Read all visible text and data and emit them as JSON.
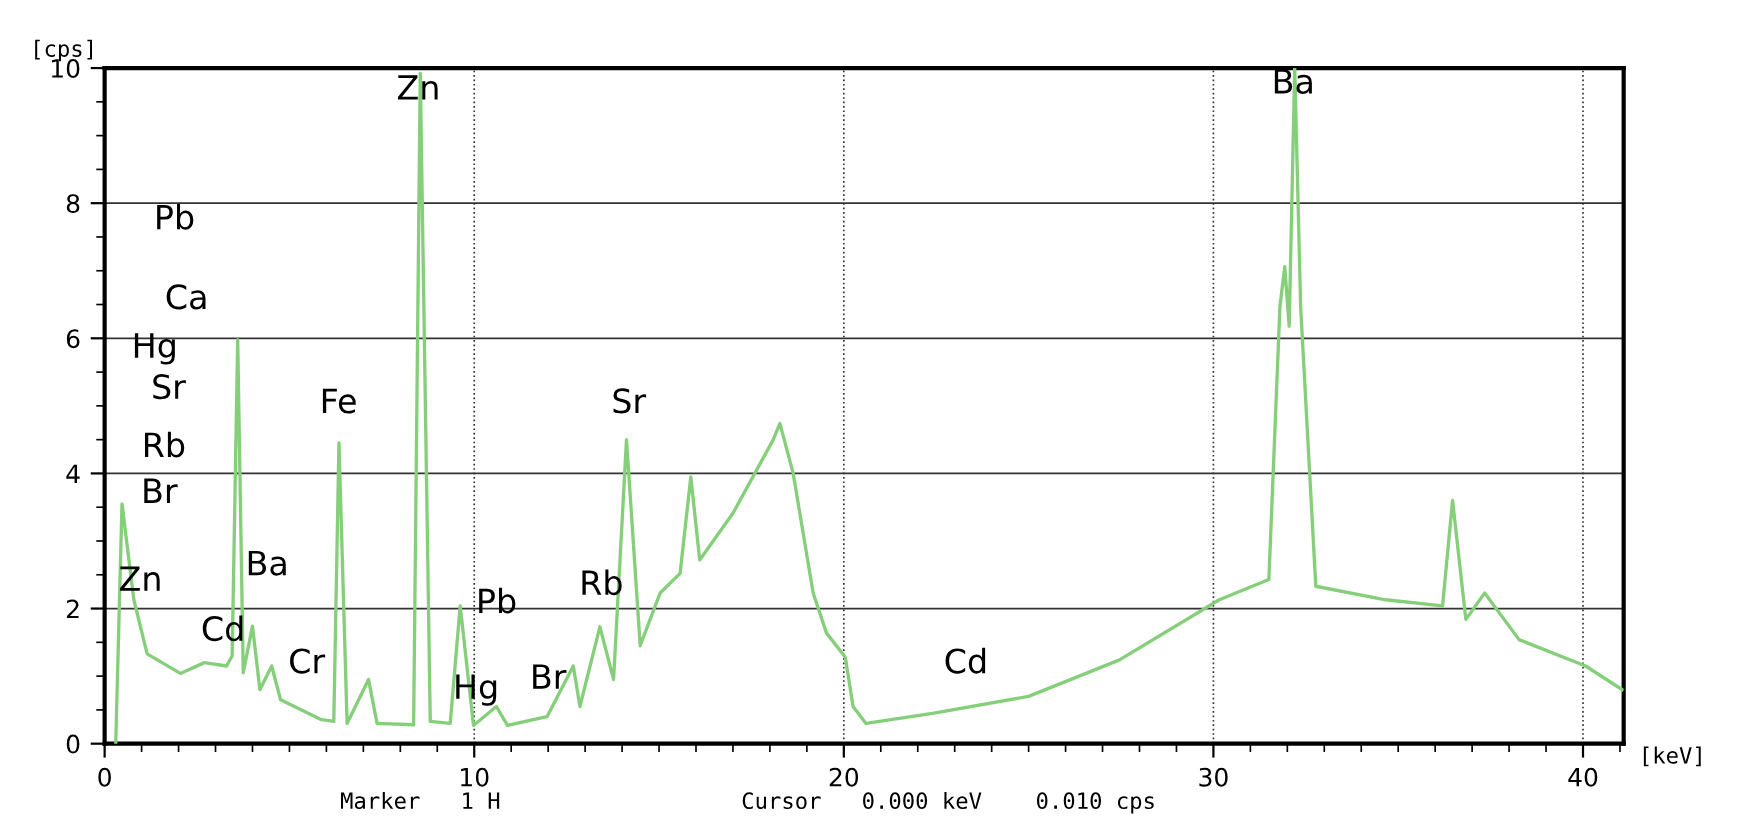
{
  "chart_data": {
    "type": "line",
    "xlabel": "[keV]",
    "ylabel": "[cps]",
    "x": [
      0.3,
      0.47,
      0.79,
      1.15,
      2.05,
      2.7,
      3.3,
      3.45,
      3.6,
      3.75,
      4.0,
      4.2,
      4.52,
      4.76,
      5.84,
      6.2,
      6.34,
      6.56,
      7.14,
      7.37,
      8.36,
      8.54,
      8.81,
      9.35,
      9.62,
      9.98,
      10.6,
      10.9,
      11.97,
      12.68,
      12.86,
      13.4,
      13.77,
      14.12,
      14.49,
      15.03,
      15.57,
      15.86,
      16.1,
      17.0,
      18.09,
      18.27,
      18.63,
      19.17,
      19.53,
      20.04,
      20.25,
      20.6,
      22.4,
      25.0,
      27.46,
      30.16,
      31.5,
      31.8,
      31.93,
      32.05,
      32.2,
      32.36,
      32.77,
      34.66,
      36.2,
      36.47,
      36.83,
      37.34,
      38.27,
      40.07,
      41.06
    ],
    "series": [
      {
        "color": "#86cf7a",
        "values": [
          0,
          3.55,
          2.13,
          1.33,
          1.04,
          1.2,
          1.15,
          1.3,
          5.98,
          1.05,
          1.74,
          0.8,
          1.15,
          0.65,
          0.36,
          0.33,
          4.45,
          0.3,
          0.95,
          0.3,
          0.28,
          9.92,
          0.33,
          0.3,
          2.04,
          0.27,
          0.55,
          0.27,
          0.4,
          1.15,
          0.55,
          1.73,
          0.95,
          4.5,
          1.45,
          2.23,
          2.52,
          3.95,
          2.72,
          3.41,
          4.5,
          4.74,
          4.0,
          2.23,
          1.64,
          1.28,
          0.55,
          0.3,
          0.45,
          0.7,
          1.24,
          2.13,
          2.43,
          6.47,
          7.06,
          6.18,
          10.0,
          6.47,
          2.33,
          2.13,
          2.04,
          3.6,
          1.84,
          2.23,
          1.54,
          1.15,
          0.8
        ]
      }
    ],
    "xlim": [
      0,
      41.1
    ],
    "ylim": [
      0,
      10
    ],
    "xticks": [
      0,
      {
        "value": 1,
        "label": null
      },
      {
        "value": 2,
        "label": null
      },
      {
        "value": 3,
        "label": null
      },
      {
        "value": 4,
        "label": null
      },
      {
        "value": 5,
        "label": null
      },
      {
        "value": 6,
        "label": null
      },
      {
        "value": 7,
        "label": null
      },
      {
        "value": 8,
        "label": null
      },
      {
        "value": 9,
        "label": null
      },
      10,
      {
        "value": 11,
        "label": null
      },
      {
        "value": 12,
        "label": null
      },
      {
        "value": 13,
        "label": null
      },
      {
        "value": 14,
        "label": null
      },
      {
        "value": 15,
        "label": null
      },
      {
        "value": 16,
        "label": null
      },
      {
        "value": 17,
        "label": null
      },
      {
        "value": 18,
        "label": null
      },
      {
        "value": 19,
        "label": null
      },
      20,
      {
        "value": 21,
        "label": null
      },
      {
        "value": 22,
        "label": null
      },
      {
        "value": 23,
        "label": null
      },
      {
        "value": 24,
        "label": null
      },
      {
        "value": 25,
        "label": null
      },
      {
        "value": 26,
        "label": null
      },
      {
        "value": 27,
        "label": null
      },
      {
        "value": 28,
        "label": null
      },
      {
        "value": 29,
        "label": null
      },
      30,
      {
        "value": 31,
        "label": null
      },
      {
        "value": 32,
        "label": null
      },
      {
        "value": 33,
        "label": null
      },
      {
        "value": 34,
        "label": null
      },
      {
        "value": 35,
        "label": null
      },
      {
        "value": 36,
        "label": null
      },
      {
        "value": 37,
        "label": null
      },
      {
        "value": 38,
        "label": null
      },
      {
        "value": 39,
        "label": null
      },
      40,
      {
        "value": 41,
        "label": null
      }
    ],
    "yticks": [
      0,
      {
        "value": 0.5,
        "label": null
      },
      {
        "value": 1,
        "label": null
      },
      {
        "value": 1.5,
        "label": null
      },
      2,
      {
        "value": 2.5,
        "label": null
      },
      {
        "value": 3,
        "label": null
      },
      {
        "value": 3.5,
        "label": null
      },
      4,
      {
        "value": 4.5,
        "label": null
      },
      {
        "value": 5,
        "label": null
      },
      {
        "value": 5.5,
        "label": null
      },
      6,
      {
        "value": 6.5,
        "label": null
      },
      {
        "value": 7,
        "label": null
      },
      {
        "value": 7.5,
        "label": null
      },
      8,
      {
        "value": 8.5,
        "label": null
      },
      {
        "value": 9,
        "label": null
      },
      {
        "value": 9.5,
        "label": null
      },
      10
    ],
    "grid": true,
    "line_style": "solid",
    "marker": "none",
    "annotations": [
      "Pb",
      "Ca",
      "Hg",
      "Sr",
      "Rb",
      "Br",
      {
        "text": "Zn",
        "x": 0.97,
        "y": 2.4
      },
      "Cd",
      "Ba",
      "Cr",
      "Fe",
      {
        "text": "Zn",
        "x": 8.49,
        "y": 9.67
      },
      "Pb",
      {
        "text": "Hg",
        "x": 10.05,
        "y": 0.8
      },
      "Br",
      "Rb",
      "Sr",
      "Cd",
      {
        "text": "Ba",
        "x": 32.16,
        "y": 9.76
      },
      "Marker   1 H",
      "Cursor   0.000 keV    0.010 cps"
    ]
  }
}
